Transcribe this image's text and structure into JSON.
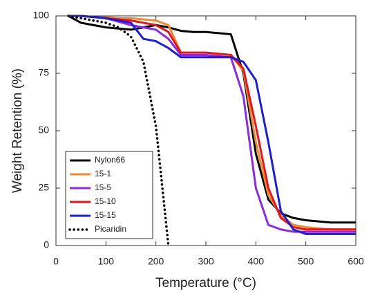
{
  "chart_data": {
    "type": "line",
    "xlabel": "Temperature (°C)",
    "ylabel": "Weight Retention (%)",
    "x": [
      25,
      50,
      75,
      100,
      125,
      150,
      175,
      200,
      225,
      250,
      275,
      300,
      325,
      350,
      375,
      400,
      425,
      450,
      475,
      500,
      525,
      550,
      575,
      600
    ],
    "series": [
      {
        "name": "Nylon66",
        "color": "#000000",
        "values": [
          100,
          97,
          96,
          95,
          94.5,
          94,
          95,
          96,
          95,
          93.5,
          93,
          93,
          92.5,
          92,
          75,
          40,
          20,
          14,
          12,
          11,
          10.5,
          10,
          10,
          10
        ]
      },
      {
        "name": "15-1",
        "color": "#f08a30",
        "values": [
          100,
          100,
          99.5,
          99.5,
          99,
          99,
          98.5,
          98,
          96,
          84,
          84,
          84,
          83.5,
          83,
          76,
          45,
          22,
          13,
          9,
          8,
          7.5,
          7,
          7,
          7
        ]
      },
      {
        "name": "15-5",
        "color": "#8a2be2",
        "values": [
          100,
          100,
          99.5,
          99,
          97.5,
          96,
          95,
          94,
          90,
          83,
          83,
          83,
          82.5,
          82,
          65,
          25,
          9,
          7,
          6,
          6,
          6,
          6,
          6,
          6
        ]
      },
      {
        "name": "15-10",
        "color": "#e8141c",
        "values": [
          100,
          100,
          99.5,
          99,
          98.5,
          98,
          97,
          96,
          93,
          84,
          84,
          84,
          83.5,
          83,
          77,
          52,
          25,
          12,
          8,
          7,
          7,
          7,
          7,
          7
        ]
      },
      {
        "name": "15-15",
        "color": "#1c1cdc",
        "values": [
          100,
          100,
          99.5,
          99,
          98,
          97,
          90,
          89,
          86,
          82,
          82,
          82,
          82,
          82,
          80,
          72,
          45,
          15,
          7,
          5,
          5,
          5,
          5,
          5
        ]
      },
      {
        "name": "Picaridin",
        "color": "#000000",
        "dotted": true,
        "values": [
          100,
          99,
          98,
          97,
          95,
          91,
          80,
          52,
          0,
          null,
          null,
          null,
          null,
          null,
          null,
          null,
          null,
          null,
          null,
          null,
          null,
          null,
          null,
          null
        ]
      }
    ],
    "xlim": [
      0,
      600
    ],
    "xticks": [
      0,
      100,
      200,
      300,
      400,
      500,
      600
    ],
    "ylim": [
      0,
      100
    ],
    "yticks": [
      0,
      25,
      50,
      75,
      100
    ],
    "legend": "lower left"
  }
}
